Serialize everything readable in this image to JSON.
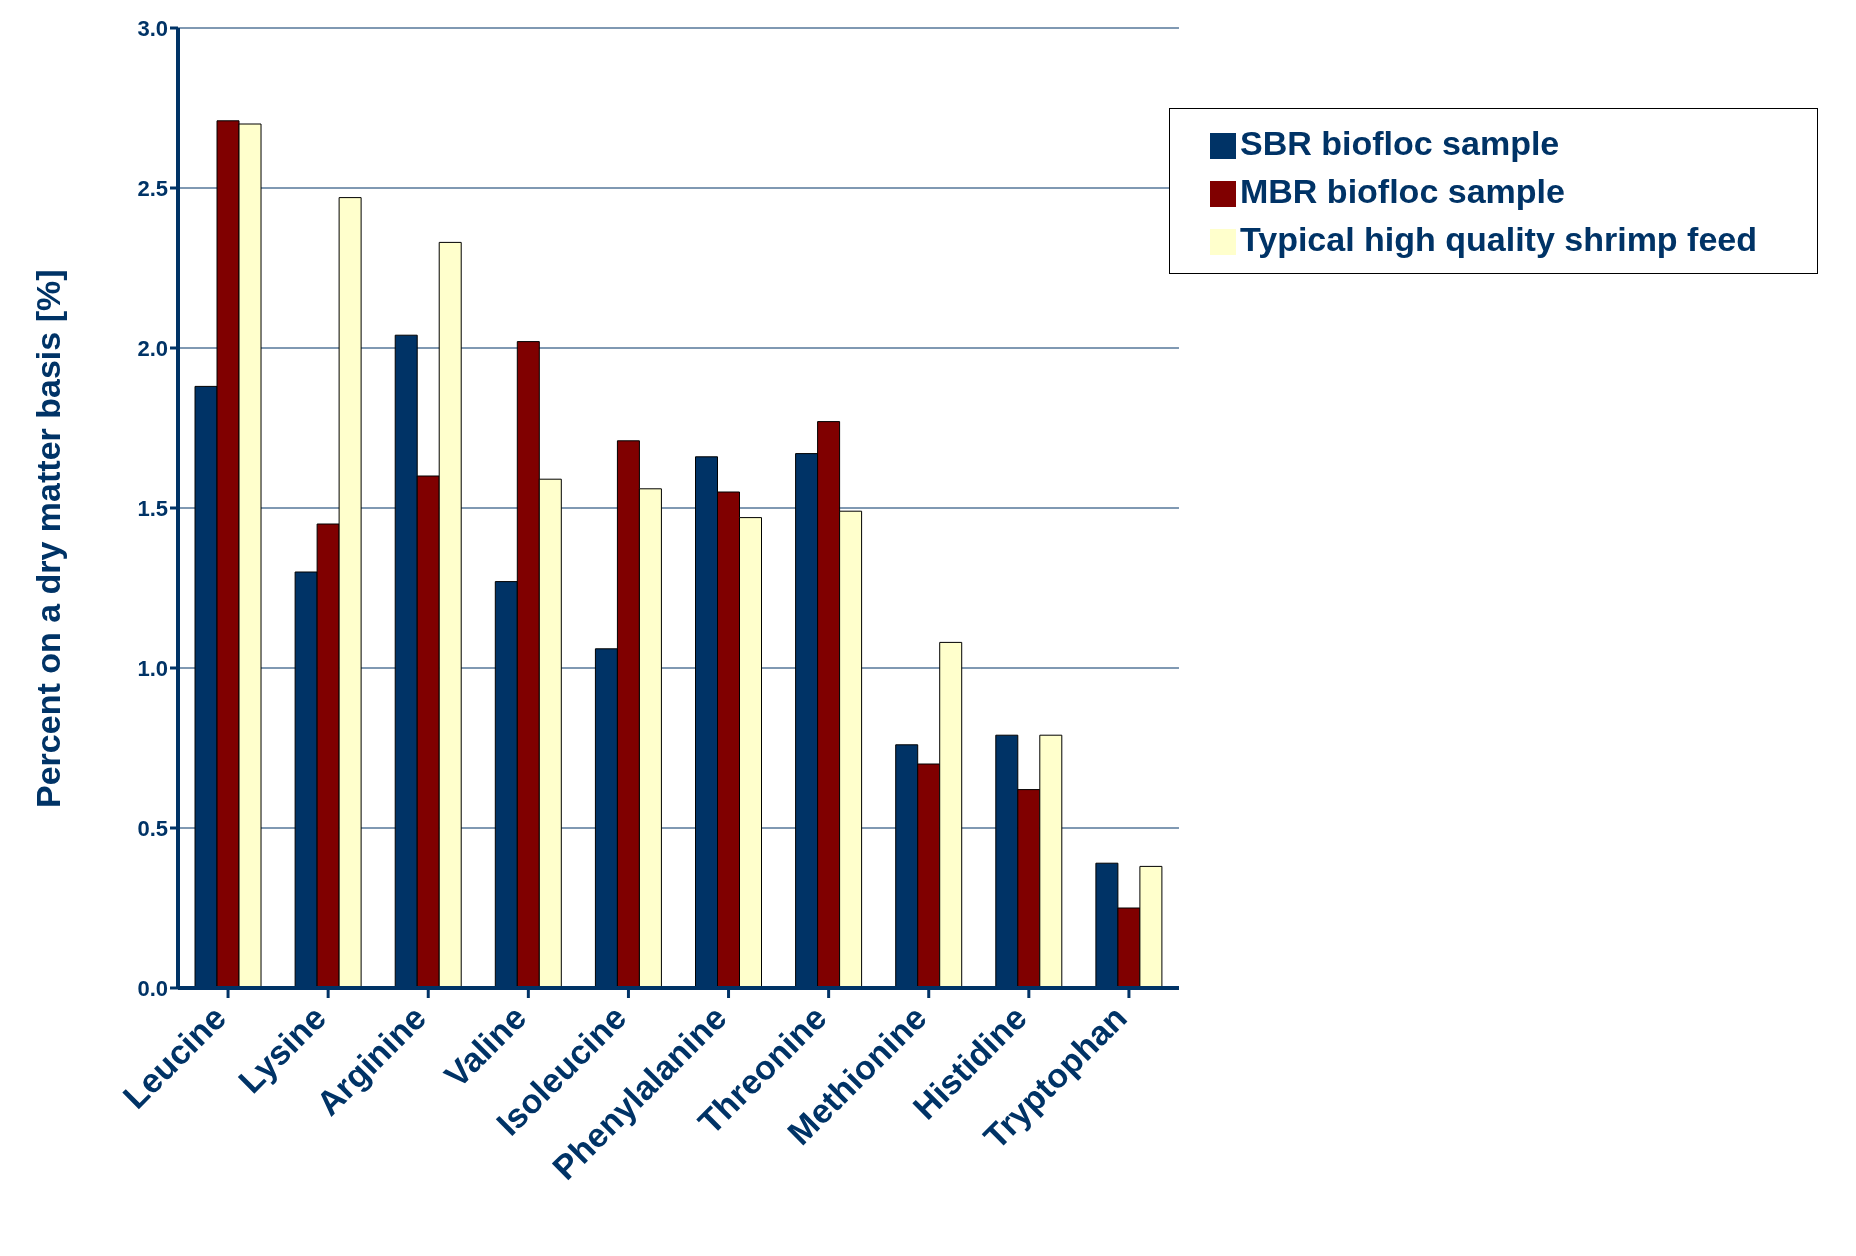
{
  "chart_data": {
    "type": "bar",
    "ylabel": "Percent on a dry matter basis [%]",
    "categories": [
      "Leucine",
      "Lysine",
      "Arginine",
      "Valine",
      "Isoleucine",
      "Phenylalanine",
      "Threonine",
      "Methionine",
      "Histidine",
      "Tryptophan"
    ],
    "series": [
      {
        "name": "SBR biofloc sample",
        "color": "#003366",
        "values": [
          1.88,
          1.3,
          2.04,
          1.27,
          1.06,
          1.66,
          1.67,
          0.76,
          0.79,
          0.39
        ]
      },
      {
        "name": "MBR biofloc sample",
        "color": "#800000",
        "values": [
          2.71,
          1.45,
          1.6,
          2.02,
          1.71,
          1.55,
          1.77,
          0.7,
          0.62,
          0.25
        ]
      },
      {
        "name": "Typical high quality shrimp feed",
        "color": "#ffffcc",
        "values": [
          2.7,
          2.47,
          2.33,
          1.59,
          1.56,
          1.47,
          1.49,
          1.08,
          0.79,
          0.38
        ]
      }
    ],
    "ylim": [
      0,
      3
    ],
    "yticks": [
      {
        "value": 0,
        "label": "0.0"
      },
      {
        "value": 0.5,
        "label": "0.5"
      },
      {
        "value": 1,
        "label": "1.0"
      },
      {
        "value": 1.5,
        "label": "1.5"
      },
      {
        "value": 2,
        "label": "2.0"
      },
      {
        "value": 2.5,
        "label": "2.5"
      },
      {
        "value": 3,
        "label": "3.0"
      }
    ],
    "grid": "y",
    "legend": "top right"
  }
}
